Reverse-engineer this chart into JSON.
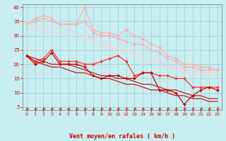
{
  "xlabel": "Vent moyen/en rafales ( km/h )",
  "bg_color": "#c8eef0",
  "grid_color": "#a0c8d0",
  "x": [
    0,
    1,
    2,
    3,
    4,
    5,
    6,
    7,
    8,
    9,
    10,
    11,
    12,
    13,
    14,
    15,
    16,
    17,
    18,
    19,
    20,
    21,
    22,
    23
  ],
  "ylim": [
    4,
    41
  ],
  "yticks": [
    5,
    10,
    15,
    20,
    25,
    30,
    35,
    40
  ],
  "series": [
    {
      "color": "#ffaaaa",
      "linewidth": 0.8,
      "marker": "D",
      "markersize": 2.0,
      "y": [
        34,
        36,
        37,
        36,
        34,
        34,
        34,
        40,
        32,
        31,
        31,
        30,
        32,
        30,
        29,
        27,
        26,
        23,
        22,
        20,
        20,
        19,
        19,
        18
      ]
    },
    {
      "color": "#ffaaaa",
      "linewidth": 0.8,
      "marker": "D",
      "markersize": 2.0,
      "y": [
        34,
        35,
        36,
        35,
        34,
        34,
        34,
        35,
        31,
        30,
        30,
        29,
        28,
        27,
        27,
        25,
        24,
        22,
        21,
        19,
        19,
        18,
        18,
        18
      ]
    },
    {
      "color": "#ffcccc",
      "linewidth": 0.8,
      "marker": null,
      "markersize": 0,
      "y": [
        34,
        34,
        33,
        33,
        32,
        32,
        31,
        30,
        29,
        28,
        27,
        26,
        25,
        24,
        23,
        22,
        21,
        20,
        19,
        18,
        18,
        17,
        17,
        17
      ]
    },
    {
      "color": "#ffcccc",
      "linewidth": 0.8,
      "marker": null,
      "markersize": 0,
      "y": [
        33,
        32,
        32,
        31,
        31,
        30,
        29,
        29,
        28,
        27,
        26,
        25,
        24,
        23,
        22,
        21,
        20,
        19,
        18,
        17,
        17,
        16,
        16,
        16
      ]
    },
    {
      "color": "#ff3333",
      "linewidth": 0.9,
      "marker": "D",
      "markersize": 2.0,
      "y": [
        23,
        21,
        22,
        25,
        21,
        21,
        21,
        20,
        20,
        21,
        22,
        23,
        21,
        16,
        17,
        17,
        16,
        16,
        15,
        15,
        12,
        12,
        12,
        12
      ]
    },
    {
      "color": "#cc0000",
      "linewidth": 0.9,
      "marker": "D",
      "markersize": 2.0,
      "y": [
        23,
        20,
        21,
        24,
        20,
        20,
        20,
        19,
        16,
        15,
        16,
        16,
        15,
        15,
        17,
        17,
        11,
        11,
        10,
        6,
        9,
        11,
        12,
        11
      ]
    },
    {
      "color": "#cc0000",
      "linewidth": 0.8,
      "marker": null,
      "markersize": 0,
      "y": [
        23,
        22,
        21,
        20,
        20,
        20,
        19,
        18,
        17,
        16,
        16,
        15,
        15,
        14,
        13,
        13,
        12,
        11,
        11,
        10,
        9,
        9,
        8,
        8
      ]
    },
    {
      "color": "#cc0000",
      "linewidth": 0.8,
      "marker": null,
      "markersize": 0,
      "y": [
        23,
        21,
        20,
        19,
        19,
        18,
        17,
        17,
        16,
        15,
        15,
        14,
        13,
        13,
        12,
        11,
        11,
        10,
        9,
        9,
        8,
        8,
        7,
        7
      ]
    }
  ],
  "arrow_color": "#cc0000",
  "tick_color": "#cc0000",
  "xlabel_color": "#cc0000",
  "axis_color": "#888888"
}
